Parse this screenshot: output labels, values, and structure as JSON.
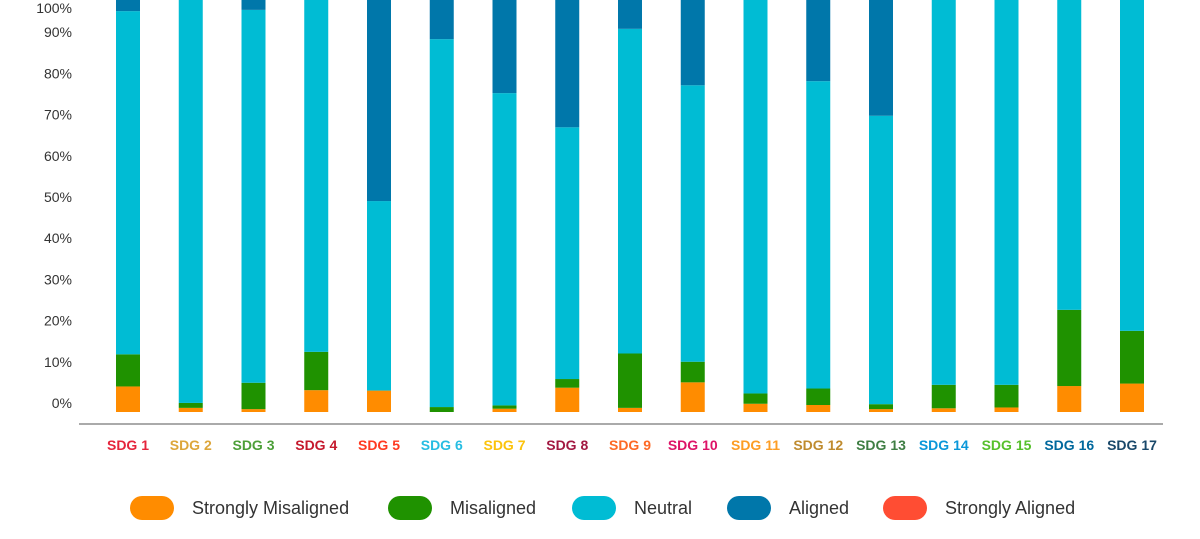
{
  "chart_data": {
    "type": "bar",
    "stacked": true,
    "ylim": [
      0,
      100
    ],
    "y_ticks": [
      "0%",
      "10%",
      "20%",
      "30%",
      "40%",
      "50%",
      "60%",
      "70%",
      "80%",
      "90%",
      "100%"
    ],
    "categories": [
      "SDG 1",
      "SDG 2",
      "SDG 3",
      "SDG 4",
      "SDG 5",
      "SDG 6",
      "SDG 7",
      "SDG 8",
      "SDG 9",
      "SDG 10",
      "SDG 11",
      "SDG 12",
      "SDG 13",
      "SDG 14",
      "SDG 15",
      "SDG 16",
      "SDG 17"
    ],
    "category_colors": [
      "#e5243b",
      "#dda63a",
      "#4c9f38",
      "#c5192d",
      "#ff3a21",
      "#26bde2",
      "#fcc30b",
      "#a21942",
      "#fd6925",
      "#dd1367",
      "#fd9d24",
      "#bf8b2e",
      "#3f7e44",
      "#0a97d9",
      "#56c02b",
      "#00689d",
      "#19486a"
    ],
    "series": [
      {
        "name": "Strongly Misaligned",
        "color": "#ff8c00",
        "values": [
          6.2,
          1.0,
          0.7,
          5.3,
          5.2,
          0.0,
          0.8,
          5.9,
          1.0,
          7.2,
          2.0,
          1.7,
          0.7,
          0.9,
          1.1,
          6.3,
          6.9
        ]
      },
      {
        "name": "Misaligned",
        "color": "#1f9200",
        "values": [
          7.8,
          1.2,
          6.4,
          9.3,
          0.0,
          1.2,
          0.8,
          2.1,
          13.2,
          5.0,
          2.5,
          4.0,
          1.2,
          5.7,
          5.5,
          18.5,
          12.8
        ]
      },
      {
        "name": "Neutral",
        "color": "#00bcd4",
        "values": [
          83.3,
          99.8,
          90.5,
          86.0,
          46.0,
          89.3,
          75.8,
          61.1,
          78.8,
          67.1,
          97.2,
          74.6,
          70.0,
          95.4,
          95.4,
          76.5,
          82.3
        ]
      },
      {
        "name": "Aligned",
        "color": "#0077aa",
        "values": [
          6.7,
          0.0,
          6.4,
          0.0,
          52.8,
          13.5,
          26.6,
          34.9,
          11.0,
          24.7,
          2.3,
          23.7,
          32.1,
          0.0,
          0.0,
          2.7,
          0.0
        ]
      },
      {
        "name": "Strongly Aligned",
        "color": "#ff4d33",
        "values": [
          0,
          0,
          0,
          0,
          0,
          0,
          0,
          0,
          0,
          0,
          0,
          0,
          0,
          0,
          0,
          0,
          0
        ]
      }
    ]
  }
}
